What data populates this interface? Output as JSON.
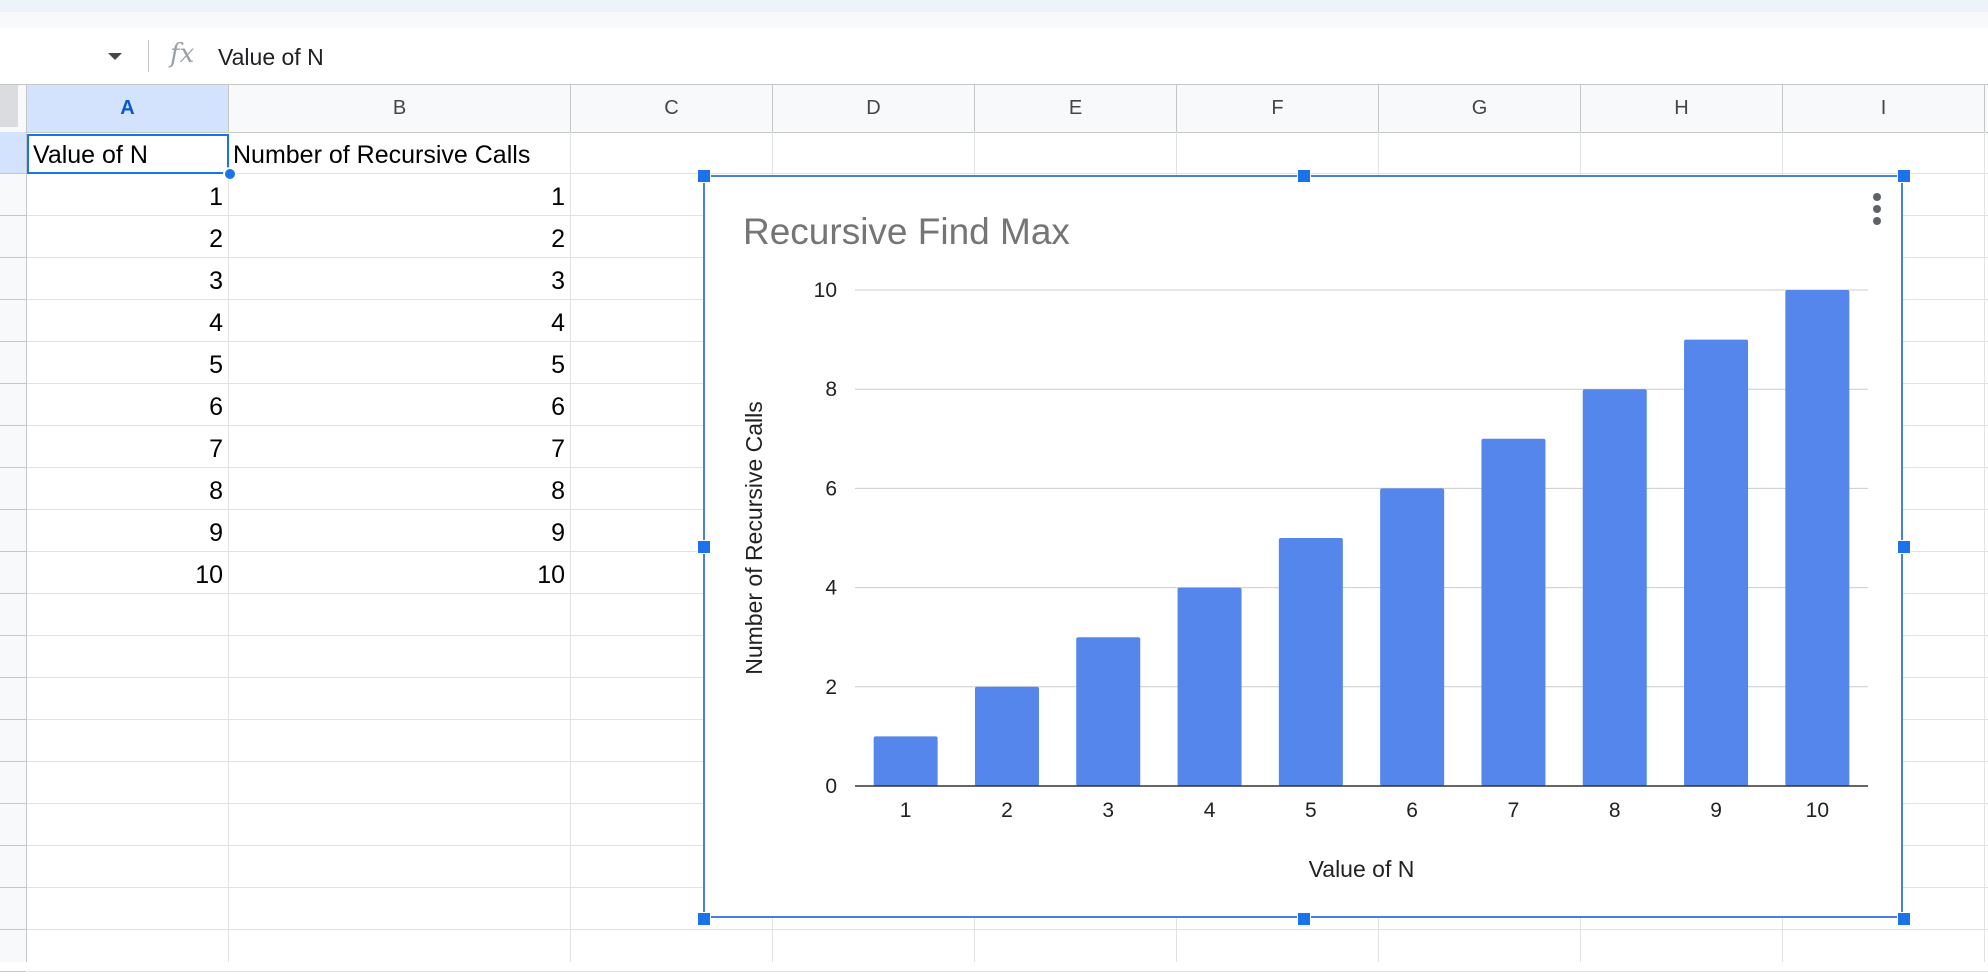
{
  "formula_bar": {
    "namebox_value": "",
    "fx_label": "fx",
    "content": "Value of N"
  },
  "columns": [
    "A",
    "B",
    "C",
    "D",
    "E",
    "F",
    "G",
    "H",
    "I"
  ],
  "cells": {
    "header_a": "Value of N",
    "header_b": "Number of Recursive Calls",
    "col_a": [
      "1",
      "2",
      "3",
      "4",
      "5",
      "6",
      "7",
      "8",
      "9",
      "10"
    ],
    "col_b": [
      "1",
      "2",
      "3",
      "4",
      "5",
      "6",
      "7",
      "8",
      "9",
      "10"
    ]
  },
  "colors": {
    "accent": "#1a73e8",
    "bar": "#5586eb",
    "selected_header": "#d3e3fd"
  },
  "chart_data": {
    "type": "bar",
    "title": "Recursive Find Max",
    "xlabel": "Value of N",
    "ylabel": "Number of Recursive Calls",
    "categories": [
      "1",
      "2",
      "3",
      "4",
      "5",
      "6",
      "7",
      "8",
      "9",
      "10"
    ],
    "series": [
      {
        "values": [
          1,
          2,
          3,
          4,
          5,
          6,
          7,
          8,
          9,
          10
        ]
      }
    ],
    "ylim": [
      0,
      10
    ],
    "yticks": [
      "0",
      "2",
      "4",
      "6",
      "8",
      "10"
    ],
    "grid": true,
    "legend": "none"
  }
}
